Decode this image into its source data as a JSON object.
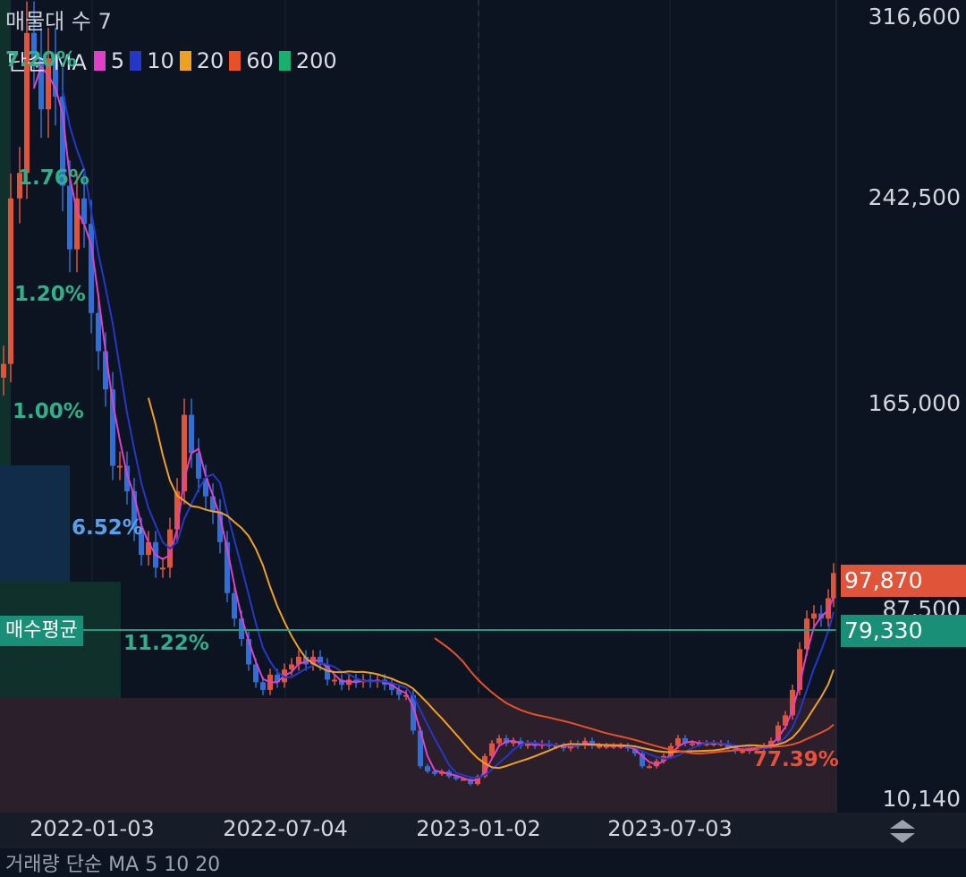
{
  "header": {
    "title": "매물대 수 7"
  },
  "legend": {
    "label": "단순 MA",
    "items": [
      {
        "period": "5",
        "color": "#e040c8"
      },
      {
        "period": "10",
        "color": "#2438c8"
      },
      {
        "period": "20",
        "color": "#f0a020"
      },
      {
        "period": "60",
        "color": "#e85028"
      },
      {
        "period": "200",
        "color": "#18b070"
      }
    ]
  },
  "price_axis": {
    "labels": [
      "316,600",
      "242,500",
      "165,000",
      "87,500",
      "10,140"
    ]
  },
  "badges": {
    "last_price": {
      "value": "97,870",
      "color": "#e0553a"
    },
    "avg_price": {
      "value": "79,330",
      "color": "#1a8f77"
    }
  },
  "avg_line": {
    "label": "매수평균"
  },
  "date_axis": {
    "labels": [
      "2022-01-03",
      "2022-07-04",
      "2023-01-02",
      "2023-07-03"
    ]
  },
  "volume_profile_labels": [
    "7.20%",
    "1.76%",
    "1.20%",
    "1.00%",
    "6.52%",
    "11.22%",
    "77.39%"
  ],
  "bottom_legend": {
    "text": "거래량 단순 MA 5 10 20"
  },
  "chart_data": {
    "type": "candlestick",
    "ylim": [
      10140,
      316600
    ],
    "moving_averages": [
      "5",
      "10",
      "20",
      "60",
      "200"
    ],
    "last_price": 97870,
    "avg_buy_price": 79330,
    "volume_profile": [
      {
        "label": "7.20%"
      },
      {
        "label": "1.76%"
      },
      {
        "label": "1.20%"
      },
      {
        "label": "1.00%"
      },
      {
        "label": "6.52%"
      },
      {
        "label": "11.22%"
      },
      {
        "label": "77.39%"
      }
    ]
  }
}
